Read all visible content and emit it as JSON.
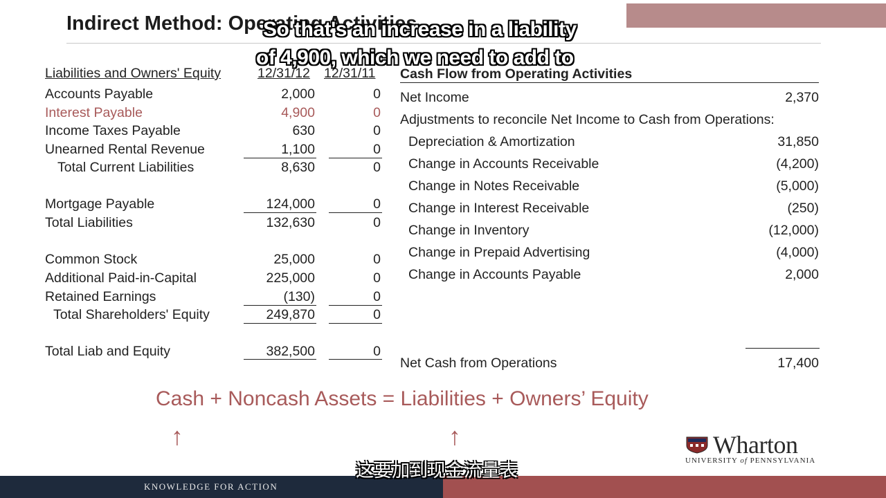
{
  "header": {
    "title": "Indirect Method: Operating Activities",
    "subtitle_line1": "So that's an increase in a liability",
    "subtitle_line2": "of 4,900, which we need to add to"
  },
  "balance_sheet": {
    "heading": "Liabilities and Owners' Equity",
    "col1": "12/31/12",
    "col2": "12/31/11",
    "rows": [
      {
        "label": "Accounts Payable",
        "v1": "2,000",
        "v2": "0"
      },
      {
        "label": "Interest Payable",
        "v1": "4,900",
        "v2": "0"
      },
      {
        "label": "Income Taxes Payable",
        "v1": "630",
        "v2": "0"
      },
      {
        "label": "Unearned Rental Revenue",
        "v1": "1,100",
        "v2": "0"
      },
      {
        "label": "Total Current Liabilities",
        "v1": "8,630",
        "v2": "0"
      },
      {
        "label": "Mortgage Payable",
        "v1": "124,000",
        "v2": "0"
      },
      {
        "label": "Total Liabilities",
        "v1": "132,630",
        "v2": "0"
      },
      {
        "label": "Common Stock",
        "v1": "25,000",
        "v2": "0"
      },
      {
        "label": "Additional Paid-in-Capital",
        "v1": "225,000",
        "v2": "0"
      },
      {
        "label": "Retained Earnings",
        "v1": "(130)",
        "v2": "0"
      },
      {
        "label": "Total Shareholders' Equity",
        "v1": "249,870",
        "v2": "0"
      },
      {
        "label": "Total Liab and Equity",
        "v1": "382,500",
        "v2": "0"
      }
    ]
  },
  "cash_flow": {
    "heading": "Cash Flow from Operating Activities",
    "net_income_label": "Net Income",
    "net_income_value": "2,370",
    "adjustments_label": "Adjustments to reconcile Net Income to Cash from Operations:",
    "items": [
      {
        "label": "Depreciation & Amortization",
        "value": "31,850"
      },
      {
        "label": "Change in Accounts Receivable",
        "value": "(4,200)"
      },
      {
        "label": "Change in Notes Receivable",
        "value": "(5,000)"
      },
      {
        "label": "Change in Interest Receivable",
        "value": "(250)"
      },
      {
        "label": "Change in Inventory",
        "value": "(12,000)"
      },
      {
        "label": "Change in Prepaid Advertising",
        "value": "(4,000)"
      },
      {
        "label": "Change in Accounts Payable",
        "value": "2,000"
      }
    ],
    "net_cash_label": "Net Cash from Operations",
    "net_cash_value": "17,400"
  },
  "equation": "Cash + Noncash Assets = Liabilities + Owners’ Equity",
  "arrow_glyph": "↑",
  "logo": {
    "name": "Wharton",
    "university_prefix": "UNIVERSITY ",
    "university_of": "of",
    "university_suffix": " PENNSYLVANIA"
  },
  "footer": {
    "tagline": "KNOWLEDGE FOR ACTION",
    "chinese_subtitle": "这要加到现金流量表"
  },
  "colors": {
    "accent_red": "#a85a5a",
    "footer_dark": "#1e2a3c",
    "footer_red": "#a25050"
  }
}
